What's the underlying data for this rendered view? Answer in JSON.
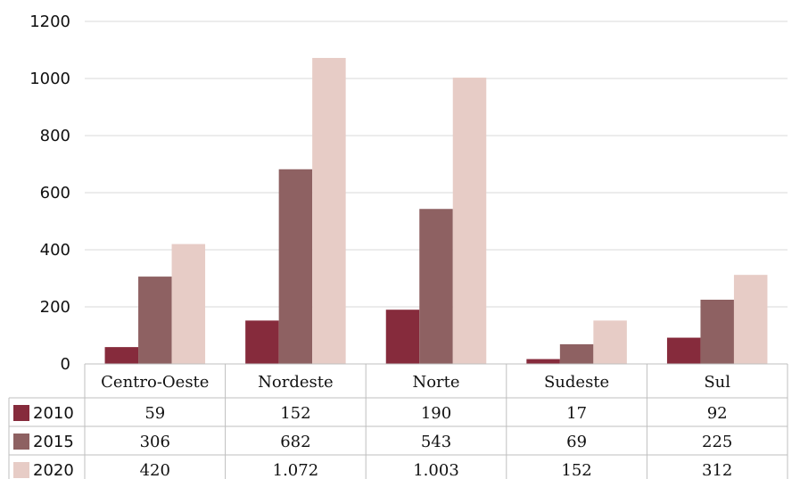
{
  "chart_data": {
    "type": "bar",
    "title": "",
    "xlabel": "",
    "ylabel": "",
    "ylim": [
      0,
      1200
    ],
    "yticks": [
      "0",
      "200",
      "400",
      "600",
      "800",
      "1000",
      "1200"
    ],
    "grid": true,
    "legend": "data-table",
    "categories": [
      "Centro-Oeste",
      "Nordeste",
      "Norte",
      "Sudeste",
      "Sul"
    ],
    "series": [
      {
        "name": "2010",
        "color": "#862B3C",
        "values": [
          59,
          152,
          190,
          17,
          92
        ],
        "labels": [
          "59",
          "152",
          "190",
          "17",
          "92"
        ]
      },
      {
        "name": "2015",
        "color": "#8E6162",
        "values": [
          306,
          682,
          543,
          69,
          225
        ],
        "labels": [
          "306",
          "682",
          "543",
          "69",
          "225"
        ]
      },
      {
        "name": "2020",
        "color": "#E7CCC6",
        "values": [
          420,
          1072,
          1003,
          152,
          312
        ],
        "labels": [
          "420",
          "1.072",
          "1.003",
          "152",
          "312"
        ]
      }
    ]
  }
}
